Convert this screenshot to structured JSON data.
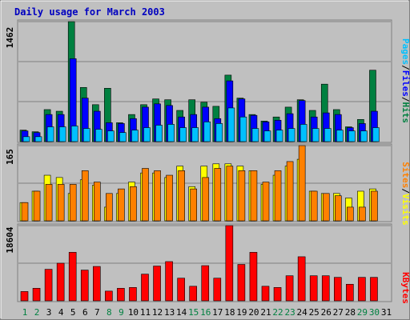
{
  "chart_data": [
    {
      "type": "bar",
      "panel": "top",
      "title": "Daily usage for March 2003",
      "ylabel_max": "1462",
      "ylim": [
        0,
        1462
      ],
      "categories": [
        "1",
        "2",
        "3",
        "4",
        "5",
        "6",
        "7",
        "8",
        "9",
        "10",
        "11",
        "12",
        "13",
        "14",
        "15",
        "16",
        "17",
        "18",
        "19",
        "20",
        "21",
        "22",
        "23",
        "24",
        "25",
        "26",
        "27",
        "28",
        "29",
        "30",
        "31"
      ],
      "weekend_days": [
        "1",
        "2",
        "8",
        "9",
        "15",
        "16",
        "22",
        "23",
        "29",
        "30"
      ],
      "series": [
        {
          "name": "Hits",
          "color": "#008040",
          "values": [
            140,
            120,
            390,
            370,
            1462,
            660,
            450,
            650,
            230,
            330,
            450,
            520,
            510,
            380,
            510,
            480,
            430,
            810,
            530,
            330,
            250,
            300,
            420,
            510,
            380,
            700,
            390,
            180,
            270,
            870,
            0
          ]
        },
        {
          "name": "Files",
          "color": "#0000ff",
          "values": [
            130,
            110,
            330,
            330,
            1010,
            530,
            370,
            230,
            220,
            280,
            420,
            460,
            440,
            300,
            330,
            420,
            280,
            740,
            520,
            320,
            240,
            260,
            340,
            500,
            300,
            350,
            330,
            170,
            220,
            370,
            0
          ]
        },
        {
          "name": "Pages",
          "color": "#00c0ff",
          "values": [
            60,
            60,
            180,
            180,
            190,
            160,
            150,
            130,
            110,
            140,
            170,
            200,
            210,
            170,
            170,
            240,
            220,
            410,
            300,
            160,
            130,
            140,
            160,
            210,
            160,
            160,
            140,
            130,
            130,
            170,
            0
          ]
        }
      ],
      "right_labels": [
        "Pages",
        "/",
        "Files",
        "/",
        "Hits"
      ]
    },
    {
      "type": "bar",
      "panel": "middle",
      "ylabel_max": "165",
      "ylim": [
        0,
        165
      ],
      "series": [
        {
          "name": "Visits",
          "color": "#ffff00",
          "values": [
            40,
            65,
            100,
            95,
            60,
            90,
            78,
            30,
            60,
            85,
            105,
            105,
            95,
            120,
            75,
            120,
            125,
            125,
            120,
            110,
            80,
            100,
            120,
            135,
            65,
            60,
            60,
            50,
            65,
            70,
            0
          ]
        },
        {
          "name": "Sites",
          "color": "#ff8000",
          "values": [
            40,
            65,
            80,
            80,
            80,
            110,
            85,
            60,
            70,
            75,
            115,
            110,
            100,
            110,
            70,
            95,
            115,
            120,
            110,
            110,
            85,
            110,
            130,
            165,
            65,
            60,
            55,
            30,
            30,
            65,
            0
          ]
        }
      ],
      "right_labels": [
        "Sites",
        "/",
        "Visits"
      ]
    },
    {
      "type": "bar",
      "panel": "bottom",
      "ylabel_max": "18604",
      "ylim": [
        0,
        18604
      ],
      "series": [
        {
          "name": "KBytes",
          "color": "#ff0000",
          "values": [
            2300,
            3100,
            7800,
            9300,
            12000,
            7600,
            8500,
            2400,
            3100,
            3300,
            6600,
            8600,
            9700,
            5600,
            3600,
            8700,
            5600,
            18604,
            9000,
            12000,
            3600,
            3300,
            6200,
            10900,
            6200,
            6200,
            5800,
            4100,
            5800,
            5800,
            0
          ]
        }
      ],
      "right_labels": [
        "KBytes"
      ]
    }
  ]
}
